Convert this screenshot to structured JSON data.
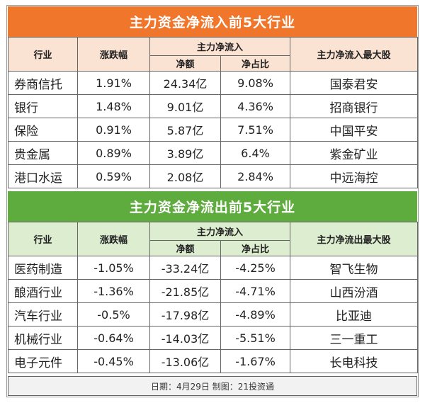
{
  "top": {
    "title": "主力资金净流入前5大行业",
    "headers": {
      "industry": "行业",
      "change": "涨跌幅",
      "group": "主力净流入",
      "amount": "净额",
      "ratio": "净占比",
      "stock": "主力净流入最大股"
    },
    "rows": [
      {
        "industry": "券商信托",
        "change": "1.91%",
        "amount": "24.34亿",
        "ratio": "9.08%",
        "stock": "国泰君安"
      },
      {
        "industry": "银行",
        "change": "1.48%",
        "amount": "9.01亿",
        "ratio": "4.36%",
        "stock": "招商银行"
      },
      {
        "industry": "保险",
        "change": "0.91%",
        "amount": "5.87亿",
        "ratio": "7.51%",
        "stock": "中国平安"
      },
      {
        "industry": "贵金属",
        "change": "0.89%",
        "amount": "3.89亿",
        "ratio": "6.4%",
        "stock": "紫金矿业"
      },
      {
        "industry": "港口水运",
        "change": "0.59%",
        "amount": "2.08亿",
        "ratio": "2.84%",
        "stock": "中远海控"
      }
    ]
  },
  "bottom": {
    "title": "主力资金净流出前5大行业",
    "headers": {
      "industry": "行业",
      "change": "涨跌幅",
      "group": "主力净流入",
      "amount": "净额",
      "ratio": "净占比",
      "stock": "主力净流出最大股"
    },
    "rows": [
      {
        "industry": "医药制造",
        "change": "-1.05%",
        "amount": "-33.24亿",
        "ratio": "-4.25%",
        "stock": "智飞生物"
      },
      {
        "industry": "酿酒行业",
        "change": "-1.36%",
        "amount": "-21.85亿",
        "ratio": "-4.71%",
        "stock": "山西汾酒"
      },
      {
        "industry": "汽车行业",
        "change": "-0.5%",
        "amount": "-17.98亿",
        "ratio": "-4.89%",
        "stock": "比亚迪"
      },
      {
        "industry": "机械行业",
        "change": "-0.64%",
        "amount": "-14.03亿",
        "ratio": "-5.51%",
        "stock": "三一重工"
      },
      {
        "industry": "电子元件",
        "change": "-0.45%",
        "amount": "-13.06亿",
        "ratio": "-1.67%",
        "stock": "长电科技"
      }
    ]
  },
  "footer": "日期：4月29日 制图：21投资通"
}
